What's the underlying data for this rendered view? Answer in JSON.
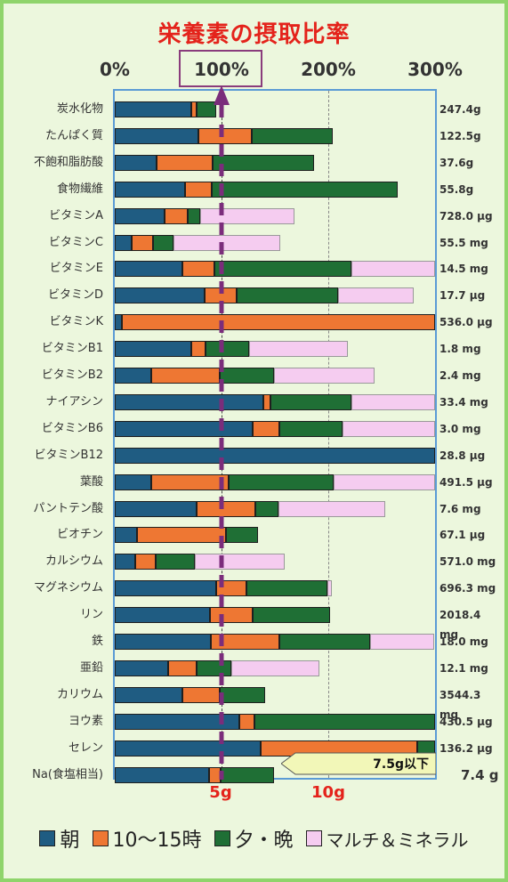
{
  "title": "栄養素の摂取比率",
  "colors": {
    "morning": "#1f5c82",
    "midday": "#ee7733",
    "evening": "#1f6f35",
    "supplement": "#f5ccf0",
    "accent": "#7b2d7b",
    "title": "#e4231b"
  },
  "chart_data": {
    "type": "bar",
    "stacked": true,
    "orientation": "horizontal",
    "x_ticks": [
      "0%",
      "100%",
      "200%",
      "300%"
    ],
    "xlim": [
      0,
      300
    ],
    "unit_markers": [
      "5g",
      "10g"
    ],
    "categories": [
      "炭水化物",
      "たんぱく質",
      "不飽和脂肪酸",
      "食物繊維",
      "ビタミンA",
      "ビタミンC",
      "ビタミンE",
      "ビタミンD",
      "ビタミンK",
      "ビタミンB1",
      "ビタミンB2",
      "ナイアシン",
      "ビタミンB6",
      "ビタミンB12",
      "葉酸",
      "パントテン酸",
      "ビオチン",
      "カルシウム",
      "マグネシウム",
      "リン",
      "鉄",
      "亜鉛",
      "カリウム",
      "ヨウ素",
      "セレン",
      "Na(食塩相当)"
    ],
    "amounts": [
      "247.4g",
      "122.5g",
      "37.6g",
      "55.8g",
      "728.0 μg",
      "55.5 mg",
      "14.5 mg",
      "17.7 μg",
      "536.0 μg",
      "1.8 mg",
      "2.4 mg",
      "33.4 mg",
      "3.0 mg",
      "28.8 μg",
      "491.5 μg",
      "7.6 mg",
      "67.1 μg",
      "571.0 mg",
      "696.3 mg",
      "2018.4 mg",
      "18.0 mg",
      "12.1 mg",
      "3544.3 mg",
      "430.5 μg",
      "136.2 μg",
      "7.4 g"
    ],
    "series": [
      {
        "name": "朝",
        "values": [
          72,
          78,
          39,
          66,
          47,
          16,
          63,
          84,
          7,
          72,
          34,
          139,
          129,
          300,
          34,
          77,
          21,
          19,
          95,
          89,
          90,
          50,
          63,
          117,
          137,
          88
        ]
      },
      {
        "name": "10～15時",
        "values": [
          5,
          50,
          53,
          25,
          21,
          20,
          30,
          30,
          293,
          13,
          64,
          7,
          25,
          0,
          73,
          55,
          83,
          19,
          28,
          40,
          64,
          27,
          35,
          14,
          146,
          11
        ]
      },
      {
        "name": "夕・晩",
        "values": [
          18,
          76,
          95,
          174,
          12,
          19,
          129,
          95,
          0,
          41,
          51,
          76,
          59,
          0,
          98,
          21,
          30,
          37,
          76,
          73,
          85,
          32,
          43,
          169,
          17,
          50
        ]
      },
      {
        "name": "マルチ＆ミネラル",
        "values": [
          0,
          0,
          0,
          0,
          88,
          100,
          78,
          71,
          0,
          92,
          94,
          78,
          87,
          0,
          96,
          100,
          0,
          84,
          4,
          0,
          60,
          83,
          0,
          0,
          0,
          0
        ]
      }
    ],
    "annotation": "7.5g以下",
    "legend_position": "bottom"
  }
}
